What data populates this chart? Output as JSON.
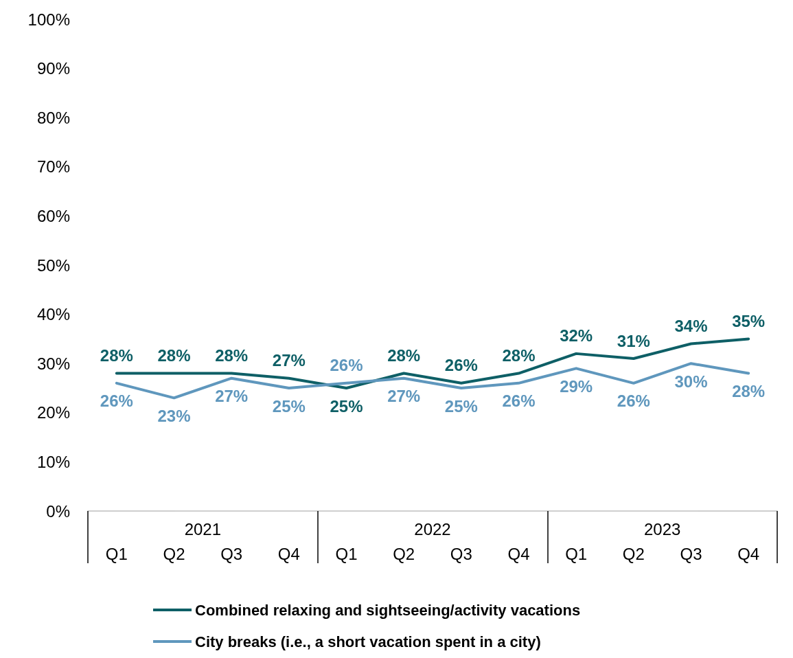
{
  "chart_data": {
    "type": "line",
    "categories": [
      "Q1",
      "Q2",
      "Q3",
      "Q4",
      "Q1",
      "Q2",
      "Q3",
      "Q4",
      "Q1",
      "Q2",
      "Q3",
      "Q4"
    ],
    "annotations": [
      "2021",
      "2022",
      "2023"
    ],
    "series": [
      {
        "name": "Combined relaxing and sightseeing/activity vacations",
        "color": "#0e5f66",
        "values": [
          28,
          28,
          28,
          27,
          25,
          28,
          26,
          28,
          32,
          31,
          34,
          35
        ],
        "value_labels": [
          "28%",
          "28%",
          "28%",
          "27%",
          "25%",
          "28%",
          "26%",
          "28%",
          "32%",
          "31%",
          "34%",
          "35%"
        ]
      },
      {
        "name": "City breaks (i.e., a short vacation spent in a city)",
        "color": "#5f97bd",
        "values": [
          26,
          23,
          27,
          25,
          26,
          27,
          25,
          26,
          29,
          26,
          30,
          28
        ],
        "value_labels": [
          "26%",
          "23%",
          "27%",
          "25%",
          "26%",
          "27%",
          "25%",
          "26%",
          "29%",
          "26%",
          "30%",
          "28%"
        ]
      }
    ],
    "ylim": [
      0,
      100
    ],
    "yticks": [
      {
        "value": 0,
        "label": "0%"
      },
      {
        "value": 10,
        "label": "10%"
      },
      {
        "value": 20,
        "label": "20%"
      },
      {
        "value": 30,
        "label": "30%"
      },
      {
        "value": 40,
        "label": "40%"
      },
      {
        "value": 50,
        "label": "50%"
      },
      {
        "value": 60,
        "label": "60%"
      },
      {
        "value": 70,
        "label": "70%"
      },
      {
        "value": 80,
        "label": "80%"
      },
      {
        "value": 90,
        "label": "90%"
      },
      {
        "value": 100,
        "label": "100%"
      }
    ],
    "grid": false,
    "legend": "bottom",
    "marker": "none",
    "line_style": "solid"
  }
}
